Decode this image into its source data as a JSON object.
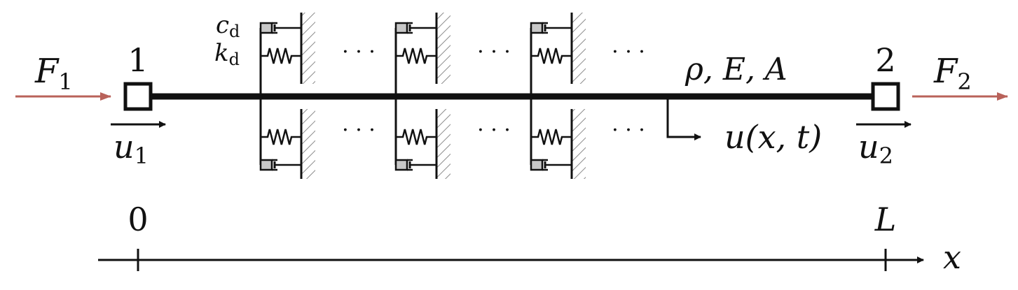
{
  "colors": {
    "force_arrow": "#b9625a",
    "ink": "#111111",
    "hatch": "#8c8c8c",
    "damper_fill": "#c8c8c8"
  },
  "labels": {
    "node1": "1",
    "node2": "2",
    "force1": {
      "main": "F",
      "sub": "1"
    },
    "force2": {
      "main": "F",
      "sub": "2"
    },
    "disp1": {
      "main": "u",
      "sub": "1"
    },
    "disp2": {
      "main": "u",
      "sub": "2"
    },
    "damping": {
      "main": "c",
      "sub": "d"
    },
    "stiffness": {
      "main": "k",
      "sub": "d"
    },
    "material": "ρ, E, A",
    "field": "u(x, t)",
    "origin": "0",
    "length": "L",
    "axis": "x",
    "ellipsis": "· · ·"
  }
}
